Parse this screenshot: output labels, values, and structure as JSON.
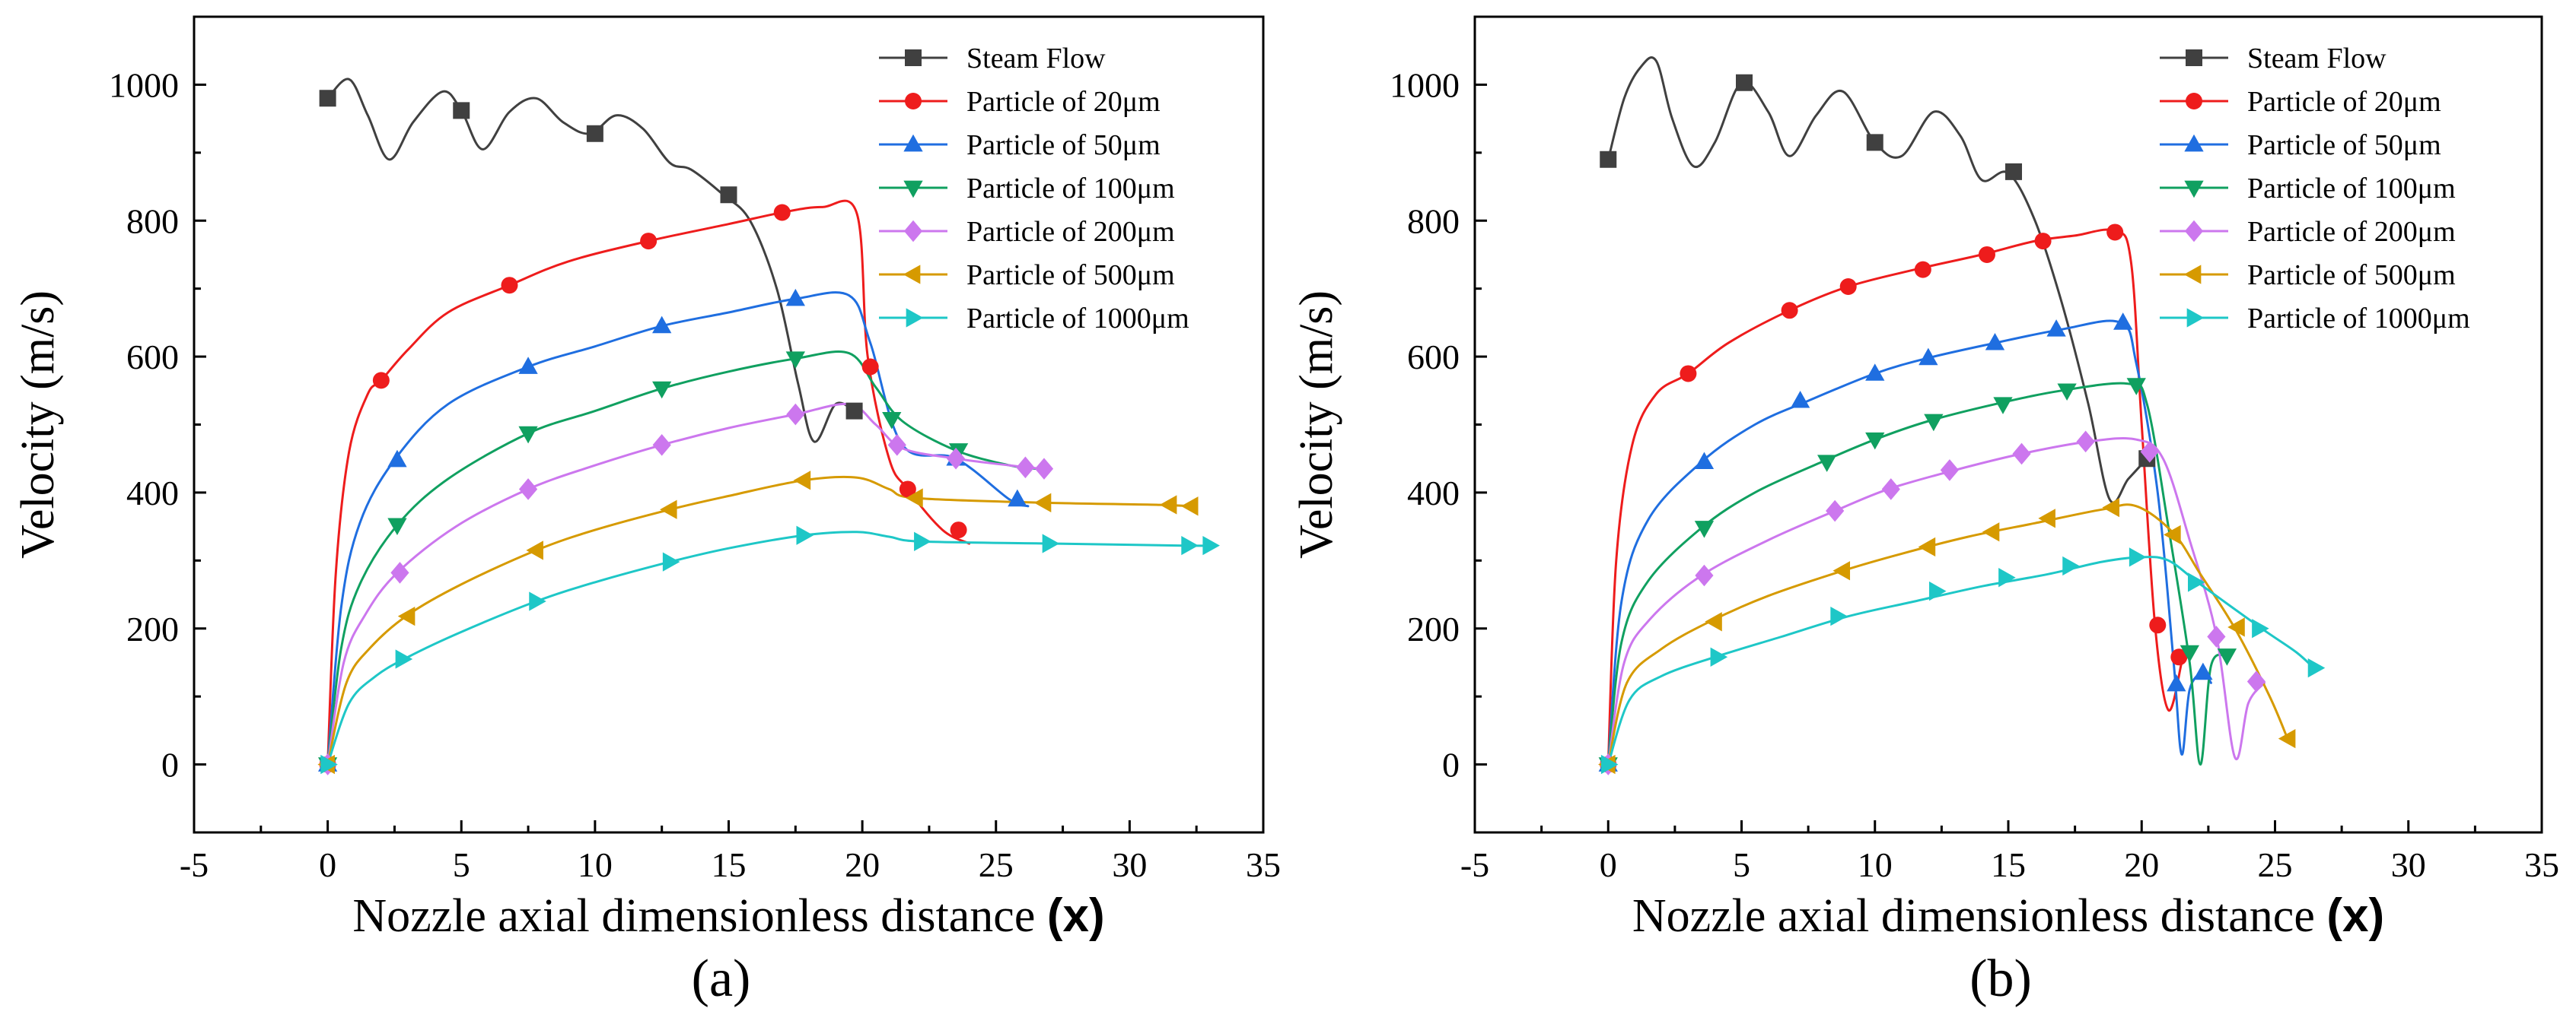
{
  "chart_data": [
    {
      "type": "line",
      "panel_caption": "(a)",
      "xlabel_main": "Nozzle axial dimensionless distance ",
      "xlabel_var": "(x)",
      "ylabel": "Velocity (m/s)",
      "xlim": [
        -5,
        35
      ],
      "ylim": [
        -100,
        1100
      ],
      "xticks": [
        -5,
        0,
        5,
        10,
        15,
        20,
        25,
        30,
        35
      ],
      "yticks": [
        0,
        200,
        400,
        600,
        800,
        1000
      ],
      "legend_position": "top-right",
      "series": [
        {
          "name": "Steam Flow",
          "color": "#404040",
          "marker": "square",
          "x": [
            0,
            0.8,
            1.5,
            2.3,
            3.2,
            4.3,
            5.0,
            5.8,
            6.8,
            7.8,
            8.8,
            9.8,
            10.8,
            11.8,
            12.8,
            13.6,
            14.8,
            15.8,
            16.8,
            17.6,
            18.2,
            19.0,
            19.7
          ],
          "y": [
            980,
            1008,
            955,
            890,
            945,
            990,
            962,
            905,
            960,
            980,
            945,
            928,
            955,
            935,
            885,
            875,
            838,
            800,
            700,
            560,
            475,
            530,
            520
          ],
          "markers_x": [
            0,
            5,
            10,
            15,
            19.7
          ],
          "markers_y": [
            980,
            962,
            928,
            838,
            520
          ]
        },
        {
          "name": "Particle of 20μm",
          "color": "#ee1c1c",
          "marker": "circle",
          "x": [
            0,
            0.3,
            0.8,
            1.5,
            2.0,
            3.0,
            4.5,
            6.8,
            9.0,
            12.0,
            15.0,
            17.0,
            18.5,
            19.8,
            20.2,
            21.0,
            21.7,
            23.0,
            24.0
          ],
          "y": [
            0,
            280,
            460,
            545,
            565,
            610,
            665,
            705,
            740,
            770,
            795,
            812,
            820,
            810,
            600,
            450,
            405,
            345,
            325
          ],
          "markers_x": [
            0,
            2,
            6.8,
            12,
            17,
            20.3,
            21.7,
            23.6
          ],
          "markers_y": [
            0,
            565,
            705,
            770,
            812,
            585,
            405,
            345
          ]
        },
        {
          "name": "Particle of 50μm",
          "color": "#1f6ee0",
          "marker": "triangle-up",
          "x": [
            0,
            0.5,
            1.2,
            2.5,
            4.5,
            7.5,
            10.0,
            12.5,
            15.0,
            17.5,
            19.5,
            20.3,
            21.5,
            23.5,
            25.5,
            26.2
          ],
          "y": [
            0,
            230,
            355,
            448,
            530,
            585,
            615,
            645,
            665,
            685,
            690,
            620,
            470,
            450,
            390,
            380
          ],
          "markers_x": [
            0,
            2.6,
            7.5,
            12.5,
            17.5,
            23.5,
            25.8
          ],
          "markers_y": [
            0,
            448,
            585,
            645,
            685,
            450,
            390
          ]
        },
        {
          "name": "Particle of 100μm",
          "color": "#10a060",
          "marker": "triangle-down",
          "x": [
            0,
            0.5,
            1.2,
            2.6,
            4.5,
            7.5,
            10.0,
            12.5,
            15.0,
            17.5,
            19.5,
            20.5,
            21.5,
            23.5,
            25.5,
            26.5
          ],
          "y": [
            0,
            170,
            265,
            352,
            420,
            487,
            520,
            553,
            578,
            597,
            605,
            555,
            505,
            462,
            440,
            435
          ],
          "markers_x": [
            0,
            2.6,
            7.5,
            12.5,
            17.5,
            21.1,
            23.6
          ],
          "markers_y": [
            0,
            352,
            487,
            553,
            597,
            508,
            462
          ]
        },
        {
          "name": "Particle of 200μm",
          "color": "#cc77ee",
          "marker": "diamond",
          "x": [
            0,
            0.6,
            1.4,
            2.6,
            4.8,
            7.5,
            10.0,
            12.5,
            15.0,
            17.5,
            19.5,
            20.5,
            21.5,
            23.5,
            25.5,
            26.7
          ],
          "y": [
            0,
            150,
            220,
            282,
            350,
            405,
            440,
            470,
            495,
            515,
            530,
            500,
            465,
            450,
            440,
            435
          ],
          "markers_x": [
            0,
            2.7,
            7.5,
            12.5,
            17.5,
            21.3,
            23.5,
            26.1,
            26.8
          ],
          "markers_y": [
            0,
            282,
            405,
            470,
            515,
            470,
            450,
            437,
            435
          ]
        },
        {
          "name": "Particle of 500μm",
          "color": "#d69a00",
          "marker": "triangle-left",
          "x": [
            0,
            0.7,
            1.6,
            3.0,
            5.0,
            7.8,
            10.0,
            12.8,
            15.0,
            17.8,
            19.8,
            21.0,
            22.0,
            26.8,
            31.0,
            32.3
          ],
          "y": [
            0,
            120,
            172,
            220,
            265,
            315,
            345,
            375,
            395,
            418,
            422,
            405,
            392,
            385,
            382,
            380
          ],
          "markers_x": [
            0,
            3.0,
            7.8,
            12.8,
            17.8,
            22.0,
            26.8,
            31.5,
            32.3
          ],
          "markers_y": [
            0,
            218,
            315,
            375,
            418,
            392,
            385,
            382,
            380
          ]
        },
        {
          "name": "Particle of 1000μm",
          "color": "#1ec7c7",
          "marker": "triangle-right",
          "x": [
            0,
            0.8,
            1.8,
            3.0,
            5.0,
            7.8,
            10.0,
            12.8,
            15.0,
            17.8,
            19.8,
            21.0,
            22.2,
            27.0,
            32.0,
            33.0
          ],
          "y": [
            0,
            90,
            130,
            158,
            195,
            240,
            268,
            298,
            318,
            337,
            342,
            335,
            328,
            325,
            322,
            322
          ],
          "markers_x": [
            0,
            2.8,
            7.8,
            12.8,
            17.8,
            22.2,
            27.0,
            32.2,
            33.0
          ],
          "markers_y": [
            0,
            155,
            240,
            298,
            337,
            328,
            325,
            322,
            322
          ]
        }
      ]
    },
    {
      "type": "line",
      "panel_caption": "(b)",
      "xlabel_main": "Nozzle axial dimensionless distance ",
      "xlabel_var": "(x)",
      "ylabel": "Velocity (m/s)",
      "xlim": [
        -5,
        35
      ],
      "ylim": [
        -100,
        1100
      ],
      "xticks": [
        -5,
        0,
        5,
        10,
        15,
        20,
        25,
        30,
        35
      ],
      "yticks": [
        0,
        200,
        400,
        600,
        800,
        1000
      ],
      "legend_position": "top-right",
      "series": [
        {
          "name": "Steam Flow",
          "color": "#404040",
          "marker": "square",
          "x": [
            0,
            0.6,
            1.2,
            1.8,
            2.4,
            3.2,
            4.0,
            5.0,
            6.0,
            6.8,
            7.8,
            8.8,
            10.0,
            11.0,
            12.2,
            13.2,
            14.0,
            15.0,
            16.0,
            17.0,
            18.0,
            18.8,
            19.5,
            20.2
          ],
          "y": [
            890,
            980,
            1025,
            1035,
            950,
            880,
            915,
            1003,
            960,
            895,
            955,
            990,
            915,
            895,
            960,
            925,
            860,
            870,
            800,
            680,
            530,
            390,
            420,
            450
          ],
          "markers_x": [
            0,
            5.1,
            10,
            15.2,
            20.2
          ],
          "markers_y": [
            890,
            1003,
            915,
            872,
            450
          ]
        },
        {
          "name": "Particle of 20μm",
          "color": "#ee1c1c",
          "marker": "circle",
          "x": [
            0,
            0.3,
            0.9,
            1.8,
            3.0,
            4.5,
            6.8,
            9.0,
            11.5,
            14.0,
            16.0,
            17.5,
            19.0,
            19.6,
            20.0,
            20.5,
            21.0,
            21.5
          ],
          "y": [
            0,
            300,
            470,
            545,
            575,
            620,
            668,
            703,
            728,
            750,
            770,
            778,
            785,
            740,
            500,
            205,
            80,
            150
          ],
          "markers_x": [
            0,
            3,
            6.8,
            9,
            11.8,
            14.2,
            16.3,
            19.0,
            20.6,
            21.4
          ],
          "markers_y": [
            0,
            575,
            668,
            703,
            728,
            750,
            770,
            783,
            205,
            158
          ]
        },
        {
          "name": "Particle of 50μm",
          "color": "#1f6ee0",
          "marker": "triangle-up",
          "x": [
            0,
            0.5,
            1.5,
            3.5,
            5.5,
            7.5,
            10.0,
            12.0,
            14.5,
            17.0,
            19.2,
            19.8,
            20.6,
            21.2,
            21.5,
            21.8,
            22.3,
            22.6
          ],
          "y": [
            0,
            240,
            360,
            445,
            500,
            535,
            575,
            598,
            620,
            640,
            650,
            590,
            400,
            150,
            15,
            110,
            135,
            120
          ],
          "markers_x": [
            0,
            3.6,
            7.2,
            10.0,
            12.0,
            14.5,
            16.8,
            19.3,
            21.3,
            22.3
          ],
          "markers_y": [
            0,
            445,
            535,
            575,
            598,
            620,
            640,
            650,
            118,
            135
          ]
        },
        {
          "name": "Particle of 100μm",
          "color": "#10a060",
          "marker": "triangle-down",
          "x": [
            0,
            0.5,
            1.5,
            3.5,
            5.5,
            8.0,
            10.0,
            12.0,
            14.5,
            17.0,
            19.5,
            20.2,
            21.0,
            21.8,
            22.2,
            22.6,
            23.2
          ],
          "y": [
            0,
            180,
            270,
            348,
            400,
            445,
            478,
            505,
            530,
            550,
            560,
            530,
            350,
            150,
            0,
            145,
            160
          ],
          "markers_x": [
            0,
            3.6,
            8.2,
            10.0,
            12.2,
            14.8,
            17.2,
            19.8,
            21.8,
            23.2
          ],
          "markers_y": [
            0,
            348,
            445,
            478,
            505,
            530,
            550,
            558,
            165,
            160
          ]
        },
        {
          "name": "Particle of 200μm",
          "color": "#cc77ee",
          "marker": "diamond",
          "x": [
            0,
            0.6,
            1.6,
            3.5,
            6.0,
            8.5,
            10.5,
            13.0,
            15.5,
            18.0,
            19.8,
            20.8,
            21.8,
            22.8,
            23.5,
            24.0,
            24.6
          ],
          "y": [
            0,
            150,
            215,
            278,
            330,
            373,
            405,
            433,
            457,
            475,
            478,
            450,
            330,
            190,
            10,
            90,
            120
          ],
          "markers_x": [
            0,
            3.6,
            8.5,
            10.6,
            12.8,
            15.5,
            17.9,
            20.3,
            22.8,
            24.3
          ],
          "markers_y": [
            0,
            278,
            373,
            405,
            433,
            457,
            475,
            460,
            188,
            122
          ]
        },
        {
          "name": "Particle of 500μm",
          "color": "#d69a00",
          "marker": "triangle-left",
          "x": [
            0,
            0.7,
            2.0,
            3.8,
            6.0,
            8.8,
            11.0,
            13.5,
            16.0,
            18.5,
            19.8,
            21.2,
            22.2,
            23.5,
            24.8,
            25.5
          ],
          "y": [
            0,
            120,
            170,
            210,
            248,
            285,
            310,
            335,
            355,
            375,
            380,
            340,
            280,
            200,
            100,
            35
          ],
          "markers_x": [
            0,
            4.0,
            8.8,
            12.0,
            14.4,
            16.5,
            18.9,
            21.2,
            23.6,
            25.5
          ],
          "markers_y": [
            0,
            210,
            285,
            320,
            342,
            362,
            378,
            338,
            202,
            38
          ]
        },
        {
          "name": "Particle of 1000μm",
          "color": "#1ec7c7",
          "marker": "triangle-right",
          "x": [
            0,
            0.8,
            2.0,
            4.0,
            6.5,
            9.0,
            11.5,
            14.0,
            16.5,
            18.5,
            20.0,
            21.0,
            22.2,
            24.5,
            25.8,
            26.5
          ],
          "y": [
            0,
            95,
            130,
            158,
            188,
            218,
            240,
            262,
            280,
            298,
            305,
            300,
            265,
            200,
            165,
            140
          ],
          "markers_x": [
            0,
            4.1,
            8.6,
            12.3,
            14.9,
            17.3,
            19.8,
            22.0,
            24.4,
            26.5
          ],
          "markers_y": [
            0,
            158,
            218,
            255,
            275,
            292,
            305,
            268,
            200,
            142
          ]
        }
      ]
    }
  ]
}
